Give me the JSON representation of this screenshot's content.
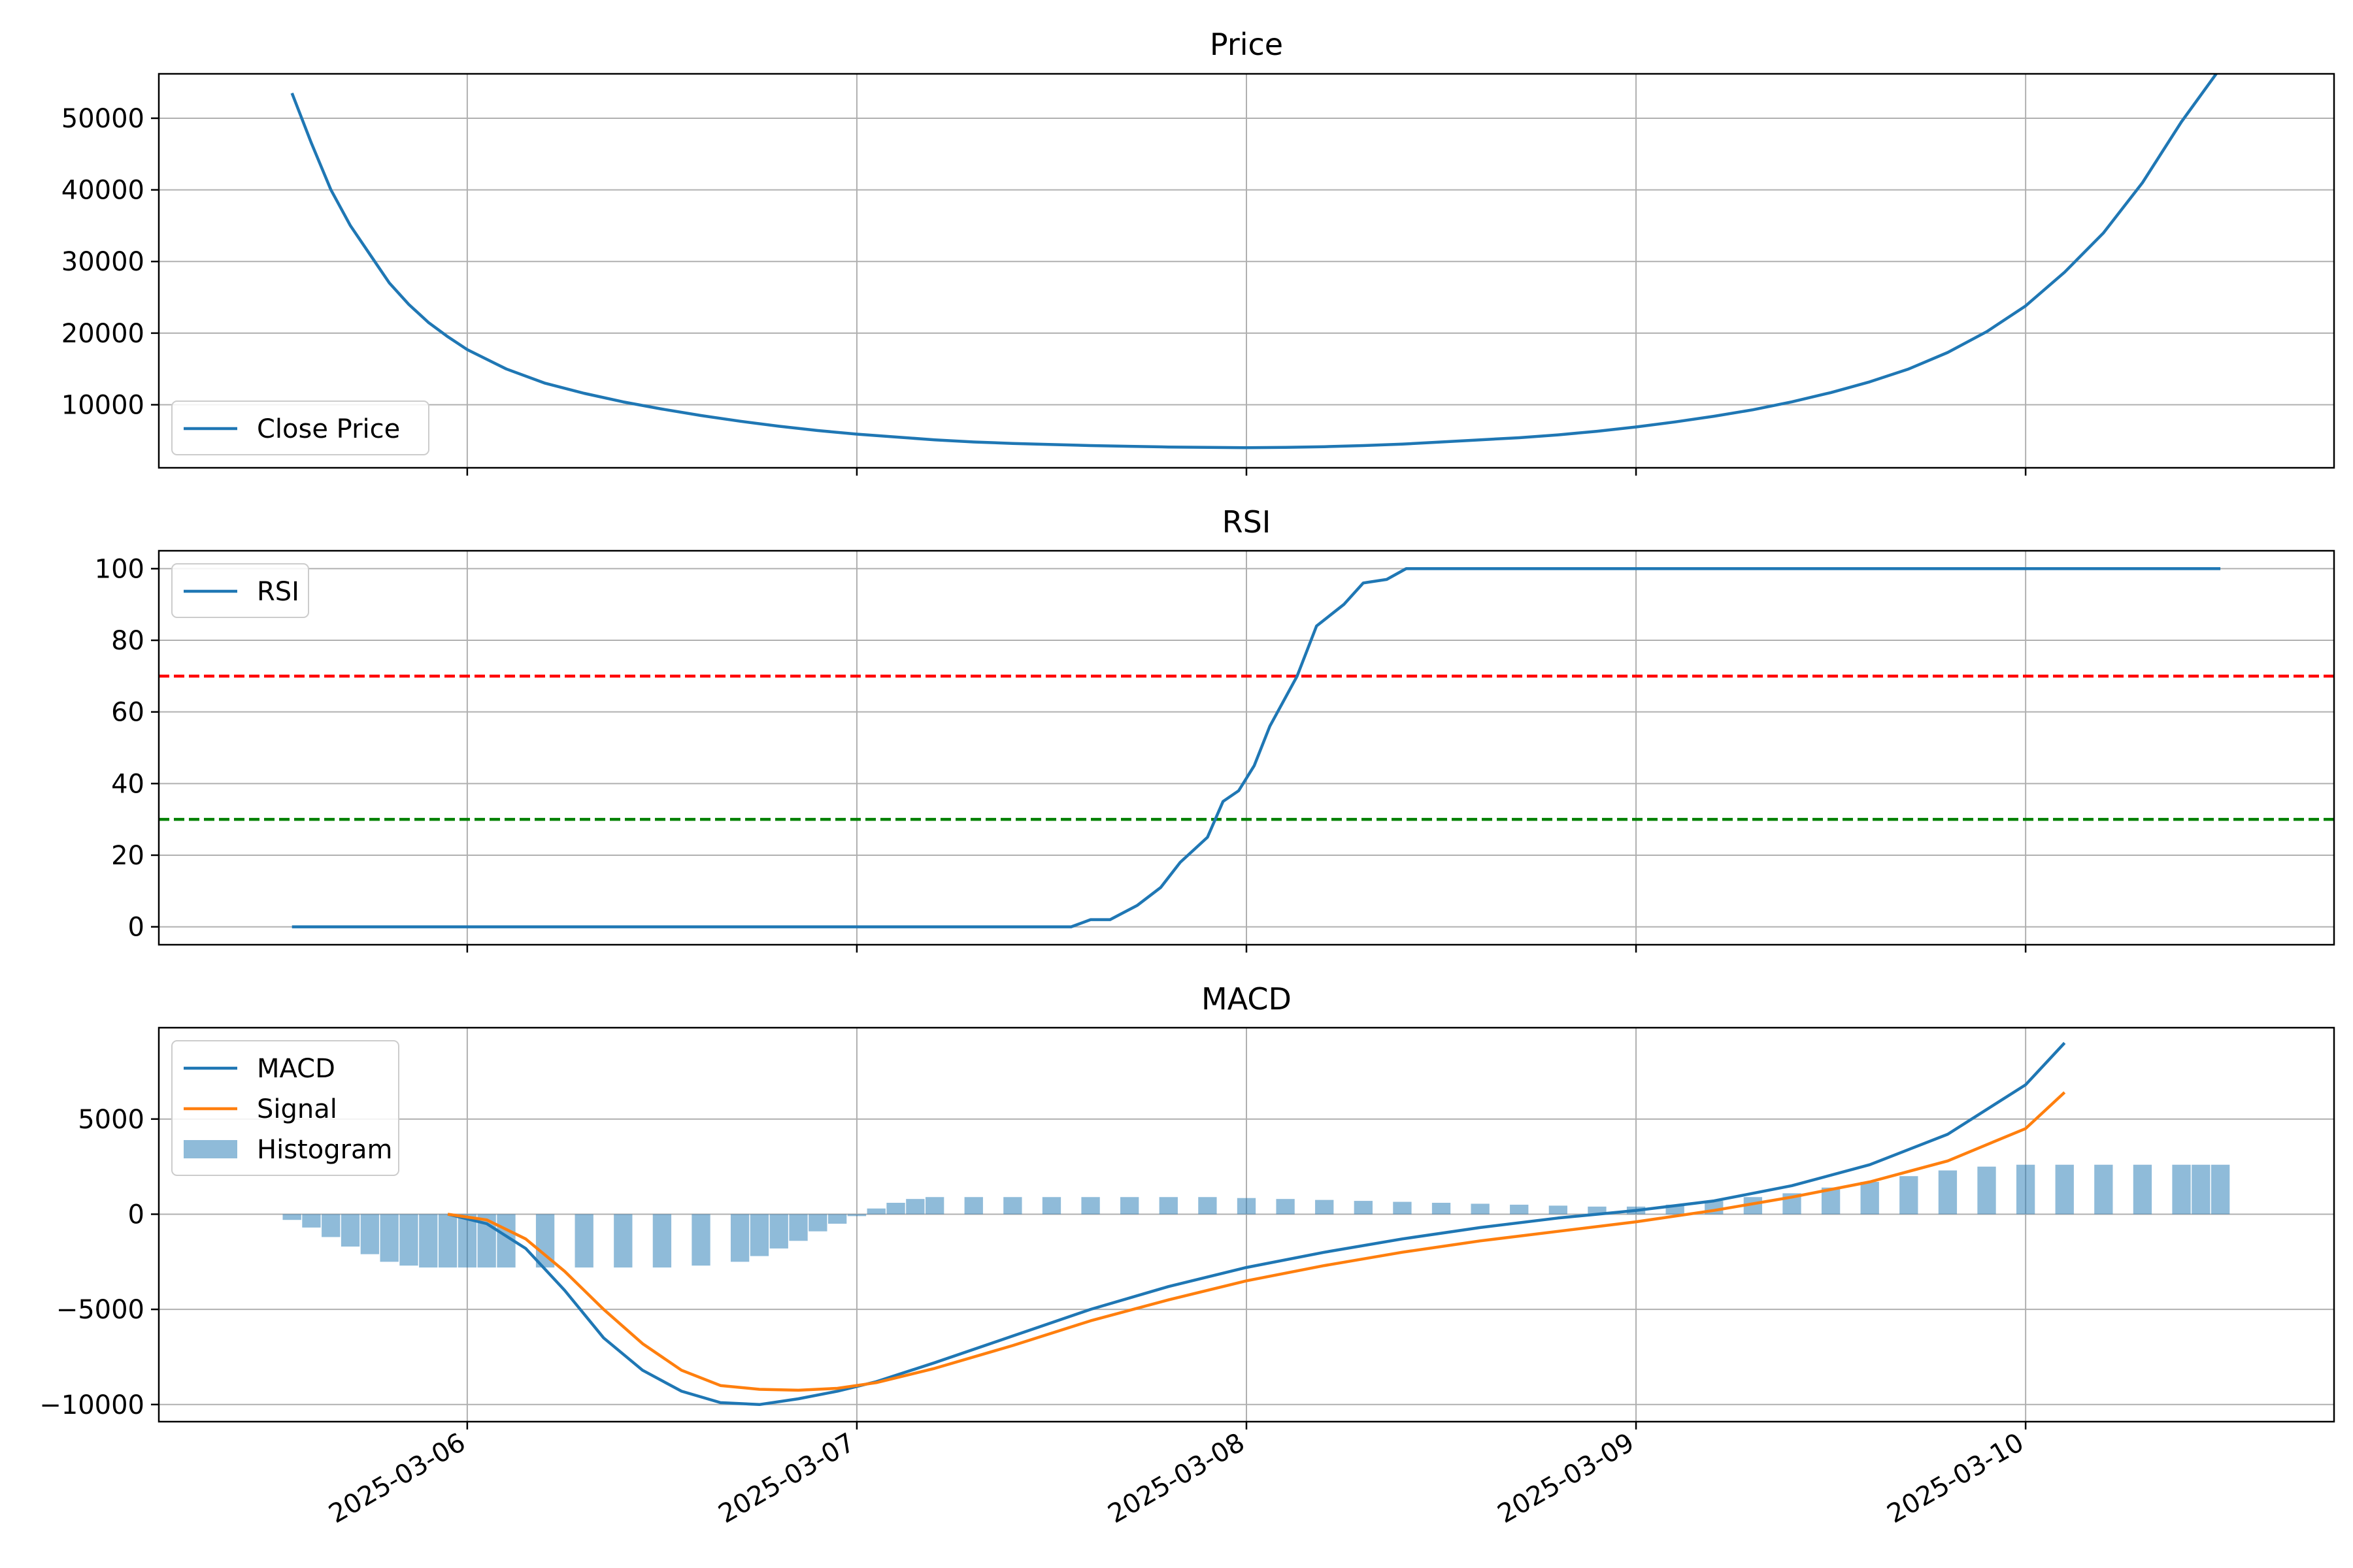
{
  "colors": {
    "blue": "#1f77b4",
    "orange": "#ff7f0e",
    "overbought": "#ff0000",
    "oversold": "#008000",
    "grid": "#b0b0b0",
    "frame": "#000000",
    "legend_border": "#cccccc"
  },
  "chart_data": [
    {
      "type": "line",
      "title": "Price",
      "xlabel": "",
      "ylabel": "",
      "x_unit": "date (fractional days, March 2025)",
      "xlim": [
        "2025-03-05 05:00",
        "2025-03-10 19:00"
      ],
      "ylim": [
        1200,
        56200
      ],
      "yticks": [
        10000,
        20000,
        30000,
        40000,
        50000
      ],
      "ytick_labels": [
        "10000",
        "20000",
        "30000",
        "40000",
        "50000"
      ],
      "grid": true,
      "legend": "lower-left",
      "series": [
        {
          "name": "Close Price",
          "x": [
            5.55,
            5.6,
            5.65,
            5.7,
            5.75,
            5.8,
            5.85,
            5.9,
            5.95,
            6.0,
            6.1,
            6.2,
            6.3,
            6.4,
            6.5,
            6.6,
            6.7,
            6.8,
            6.9,
            7.0,
            7.1,
            7.2,
            7.3,
            7.4,
            7.5,
            7.6,
            7.7,
            7.8,
            7.9,
            8.0,
            8.1,
            8.2,
            8.3,
            8.4,
            8.5,
            8.6,
            8.7,
            8.8,
            8.9,
            9.0,
            9.1,
            9.2,
            9.3,
            9.4,
            9.5,
            9.6,
            9.7,
            9.8,
            9.9,
            10.0,
            10.1,
            10.2,
            10.3,
            10.4,
            10.5
          ],
          "y": [
            53500,
            46500,
            40000,
            35000,
            31000,
            27000,
            24000,
            21500,
            19500,
            17700,
            15000,
            13000,
            11600,
            10400,
            9400,
            8500,
            7700,
            7000,
            6400,
            5900,
            5500,
            5100,
            4800,
            4600,
            4450,
            4300,
            4200,
            4100,
            4050,
            4000,
            4050,
            4150,
            4300,
            4500,
            4800,
            5100,
            5400,
            5800,
            6300,
            6900,
            7600,
            8400,
            9300,
            10400,
            11700,
            13200,
            15000,
            17300,
            20200,
            23800,
            28500,
            34000,
            41000,
            49500,
            57000
          ]
        }
      ]
    },
    {
      "type": "line",
      "title": "RSI",
      "xlabel": "",
      "ylabel": "",
      "x_unit": "date (fractional days, March 2025)",
      "xlim": [
        "2025-03-05 05:00",
        "2025-03-10 19:00"
      ],
      "ylim": [
        -5,
        105
      ],
      "yticks": [
        0,
        20,
        40,
        60,
        80,
        100
      ],
      "ytick_labels": [
        "0",
        "20",
        "40",
        "60",
        "80",
        "100"
      ],
      "grid": true,
      "legend": "top-left",
      "hlines": [
        {
          "y": 70,
          "color": "#ff0000",
          "style": "dashed"
        },
        {
          "y": 30,
          "color": "#008000",
          "style": "dashed"
        }
      ],
      "series": [
        {
          "name": "RSI",
          "x": [
            5.55,
            7.55,
            7.6,
            7.65,
            7.72,
            7.78,
            7.83,
            7.87,
            7.9,
            7.94,
            7.98,
            8.02,
            8.06,
            8.13,
            8.18,
            8.25,
            8.3,
            8.36,
            8.41,
            8.48,
            8.55,
            10.5
          ],
          "y": [
            0,
            0,
            2,
            2,
            6,
            11,
            18,
            22,
            25,
            35,
            38,
            45,
            56,
            70,
            84,
            90,
            96,
            97,
            100,
            100,
            100,
            100
          ]
        }
      ]
    },
    {
      "type": "line",
      "title": "MACD",
      "xlabel": "",
      "ylabel": "",
      "x_unit": "date (fractional days, March 2025)",
      "xlim": [
        "2025-03-05 05:00",
        "2025-03-10 19:00"
      ],
      "ylim": [
        -10900,
        9800
      ],
      "yticks": [
        -10000,
        -5000,
        0,
        5000
      ],
      "ytick_labels": [
        "−10000",
        "−5000",
        "0",
        "5000"
      ],
      "xticks": [
        "2025-03-06",
        "2025-03-07",
        "2025-03-08",
        "2025-03-09",
        "2025-03-10"
      ],
      "grid": true,
      "legend": "top-left",
      "series": [
        {
          "name": "MACD",
          "x": [
            5.95,
            6.05,
            6.15,
            6.25,
            6.35,
            6.45,
            6.55,
            6.65,
            6.75,
            6.85,
            6.95,
            7.05,
            7.2,
            7.4,
            7.6,
            7.8,
            8.0,
            8.2,
            8.4,
            8.6,
            8.8,
            9.0,
            9.2,
            9.4,
            9.6,
            9.8,
            10.0,
            10.1
          ],
          "y": [
            0,
            -500,
            -1800,
            -4000,
            -6500,
            -8200,
            -9300,
            -9900,
            -10000,
            -9700,
            -9300,
            -8800,
            -7800,
            -6400,
            -5000,
            -3800,
            -2800,
            -2000,
            -1300,
            -700,
            -200,
            200,
            700,
            1500,
            2600,
            4200,
            6800,
            9000
          ]
        },
        {
          "name": "Signal",
          "x": [
            5.95,
            6.05,
            6.15,
            6.25,
            6.35,
            6.45,
            6.55,
            6.65,
            6.75,
            6.85,
            6.95,
            7.05,
            7.2,
            7.4,
            7.6,
            7.8,
            8.0,
            8.2,
            8.4,
            8.6,
            8.8,
            9.0,
            9.2,
            9.4,
            9.6,
            9.8,
            10.0,
            10.1
          ],
          "y": [
            0,
            -300,
            -1300,
            -3000,
            -5000,
            -6800,
            -8200,
            -9000,
            -9200,
            -9250,
            -9150,
            -8850,
            -8100,
            -6900,
            -5600,
            -4500,
            -3500,
            -2700,
            -2000,
            -1400,
            -900,
            -400,
            200,
            900,
            1700,
            2800,
            4500,
            6400
          ]
        },
        {
          "name": "Histogram",
          "kind": "bar",
          "values_at": "x",
          "x": [
            5.55,
            5.6,
            5.65,
            5.7,
            5.75,
            5.8,
            5.85,
            5.9,
            5.95,
            6.0,
            6.05,
            6.1,
            6.2,
            6.3,
            6.4,
            6.5,
            6.6,
            6.7,
            6.75,
            6.8,
            6.85,
            6.9,
            6.95,
            7.0,
            7.05,
            7.1,
            7.15,
            7.2,
            7.3,
            7.4,
            7.5,
            7.6,
            7.7,
            7.8,
            7.9,
            8.0,
            8.1,
            8.2,
            8.3,
            8.4,
            8.5,
            8.6,
            8.7,
            8.8,
            8.9,
            9.0,
            9.1,
            9.2,
            9.3,
            9.4,
            9.5,
            9.6,
            9.7,
            9.8,
            9.9,
            10.0,
            10.1,
            10.2,
            10.3,
            10.4,
            10.45,
            10.5
          ],
          "y": [
            -300,
            -700,
            -1200,
            -1700,
            -2100,
            -2500,
            -2700,
            -2800,
            -2800,
            -2800,
            -2800,
            -2800,
            -2800,
            -2800,
            -2800,
            -2800,
            -2700,
            -2500,
            -2200,
            -1800,
            -1400,
            -900,
            -500,
            -100,
            300,
            600,
            800,
            900,
            900,
            900,
            900,
            900,
            900,
            900,
            900,
            850,
            800,
            750,
            700,
            650,
            600,
            550,
            500,
            450,
            400,
            400,
            500,
            700,
            900,
            1100,
            1400,
            1700,
            2000,
            2300,
            2500,
            2600,
            2600,
            2600,
            2600,
            2600,
            2600,
            2600
          ]
        }
      ]
    }
  ]
}
